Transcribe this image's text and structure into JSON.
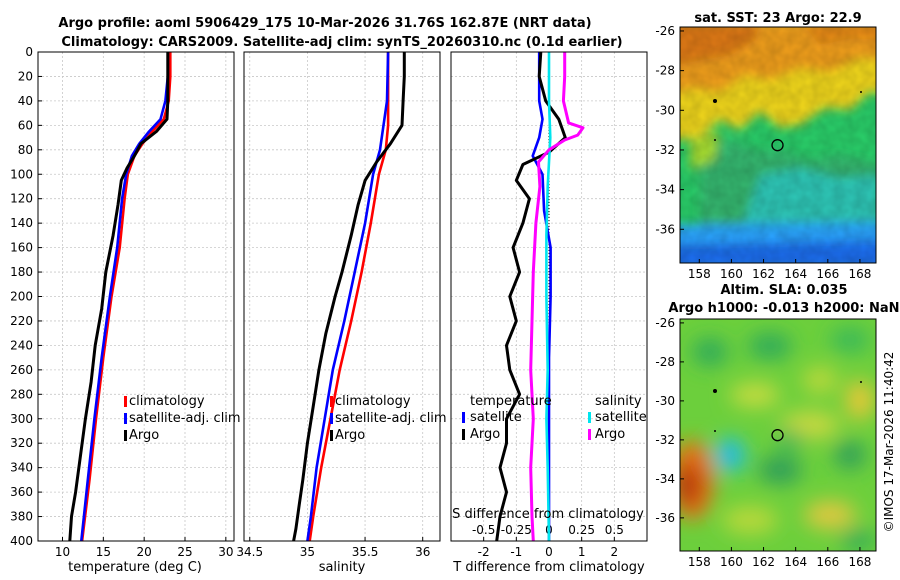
{
  "header": {
    "title_line1": "Argo profile: aoml 5906429_175 10-Mar-2026 31.76S 162.87E (NRT data)",
    "title_line2": "Climatology: CARS2009. Satellite-adj clim: synTS_20260310.nc (0.1d earlier)"
  },
  "colors": {
    "climatology": "#ff0000",
    "satellite": "#0000ff",
    "argo": "#000000",
    "sal_sat": "#00e5ee",
    "sal_argo": "#ff00ff"
  },
  "depth_ticks": [
    "0",
    "20",
    "40",
    "60",
    "80",
    "100",
    "120",
    "140",
    "160",
    "180",
    "200",
    "220",
    "240",
    "260",
    "280",
    "300",
    "320",
    "340",
    "360",
    "380",
    "400"
  ],
  "chart_data": [
    {
      "type": "line",
      "name": "temperature",
      "xlabel": "temperature (deg C)",
      "ylabel": "",
      "xlim": [
        7,
        31
      ],
      "ylim": [
        400,
        0
      ],
      "x_ticks": [
        "10",
        "15",
        "20",
        "25",
        "30"
      ],
      "x_tick_values": [
        10,
        15,
        20,
        25,
        30
      ],
      "legend": [
        "climatology",
        "satellite-adj. clim",
        "Argo"
      ],
      "series": [
        {
          "name": "climatology",
          "color": "#ff0000",
          "points": [
            [
              23.2,
              0
            ],
            [
              23.2,
              20
            ],
            [
              23.0,
              40
            ],
            [
              22.4,
              55
            ],
            [
              21.0,
              65
            ],
            [
              19.8,
              75
            ],
            [
              18.8,
              85
            ],
            [
              18.0,
              100
            ],
            [
              17.6,
              120
            ],
            [
              17.0,
              160
            ],
            [
              16.0,
              200
            ],
            [
              15.0,
              250
            ],
            [
              14.1,
              300
            ],
            [
              13.3,
              350
            ],
            [
              12.4,
              400
            ]
          ]
        },
        {
          "name": "satellite-adj. clim",
          "color": "#0000ff",
          "points": [
            [
              22.9,
              0
            ],
            [
              22.9,
              20
            ],
            [
              22.6,
              40
            ],
            [
              22.0,
              55
            ],
            [
              20.6,
              65
            ],
            [
              19.4,
              75
            ],
            [
              18.5,
              85
            ],
            [
              17.8,
              100
            ],
            [
              17.3,
              120
            ],
            [
              16.7,
              160
            ],
            [
              15.8,
              200
            ],
            [
              14.8,
              250
            ],
            [
              13.9,
              300
            ],
            [
              13.1,
              350
            ],
            [
              12.3,
              400
            ]
          ]
        },
        {
          "name": "Argo",
          "color": "#000000",
          "points": [
            [
              22.9,
              0
            ],
            [
              22.9,
              20
            ],
            [
              22.9,
              40
            ],
            [
              22.8,
              55
            ],
            [
              21.5,
              65
            ],
            [
              19.6,
              75
            ],
            [
              18.8,
              85
            ],
            [
              17.9,
              95
            ],
            [
              17.2,
              105
            ],
            [
              16.8,
              125
            ],
            [
              16.2,
              150
            ],
            [
              15.3,
              180
            ],
            [
              14.8,
              210
            ],
            [
              14.0,
              240
            ],
            [
              13.5,
              270
            ],
            [
              12.8,
              300
            ],
            [
              12.2,
              330
            ],
            [
              11.6,
              360
            ],
            [
              11.1,
              380
            ],
            [
              10.9,
              400
            ]
          ]
        }
      ]
    },
    {
      "type": "line",
      "name": "salinity",
      "xlabel": "salinity",
      "ylabel": "",
      "xlim": [
        34.45,
        36.15
      ],
      "ylim": [
        400,
        0
      ],
      "x_ticks": [
        "34.5",
        "35",
        "35.5",
        "36"
      ],
      "x_tick_values": [
        34.5,
        35,
        35.5,
        36
      ],
      "legend": [
        "climatology",
        "satellite-adj. clim",
        "Argo"
      ],
      "series": [
        {
          "name": "climatology",
          "color": "#ff0000",
          "points": [
            [
              35.7,
              0
            ],
            [
              35.7,
              40
            ],
            [
              35.7,
              60
            ],
            [
              35.68,
              80
            ],
            [
              35.62,
              100
            ],
            [
              35.55,
              140
            ],
            [
              35.47,
              180
            ],
            [
              35.38,
              220
            ],
            [
              35.28,
              260
            ],
            [
              35.2,
              300
            ],
            [
              35.12,
              340
            ],
            [
              35.05,
              380
            ],
            [
              35.02,
              400
            ]
          ]
        },
        {
          "name": "satellite-adj. clim",
          "color": "#0000ff",
          "points": [
            [
              35.7,
              0
            ],
            [
              35.69,
              40
            ],
            [
              35.66,
              60
            ],
            [
              35.63,
              80
            ],
            [
              35.57,
              100
            ],
            [
              35.5,
              140
            ],
            [
              35.41,
              180
            ],
            [
              35.32,
              220
            ],
            [
              35.22,
              260
            ],
            [
              35.15,
              300
            ],
            [
              35.08,
              340
            ],
            [
              35.03,
              380
            ],
            [
              35.0,
              400
            ]
          ]
        },
        {
          "name": "Argo",
          "color": "#000000",
          "points": [
            [
              35.84,
              0
            ],
            [
              35.84,
              20
            ],
            [
              35.83,
              40
            ],
            [
              35.82,
              60
            ],
            [
              35.72,
              75
            ],
            [
              35.6,
              90
            ],
            [
              35.5,
              105
            ],
            [
              35.44,
              125
            ],
            [
              35.38,
              150
            ],
            [
              35.3,
              180
            ],
            [
              35.24,
              200
            ],
            [
              35.16,
              230
            ],
            [
              35.1,
              260
            ],
            [
              35.05,
              290
            ],
            [
              35.0,
              320
            ],
            [
              34.96,
              350
            ],
            [
              34.93,
              370
            ],
            [
              34.9,
              390
            ],
            [
              34.88,
              400
            ]
          ]
        }
      ]
    },
    {
      "type": "line",
      "name": "difference",
      "xlabel": "T difference from climatology",
      "top_label": "S difference from climatology",
      "xlim": [
        -3,
        3
      ],
      "ylim": [
        400,
        0
      ],
      "x_ticks": [
        "-2",
        "-1",
        "0",
        "1",
        "2"
      ],
      "x_tick_values": [
        -2,
        -1,
        0,
        1,
        2
      ],
      "s_ticks": [
        "-0.5",
        "-0.25",
        "0",
        "0.25",
        "0.5"
      ],
      "s_tick_values": [
        -0.5,
        -0.25,
        0,
        0.25,
        0.5
      ],
      "legend_left_header": "temperature",
      "legend_right_header": "salinity",
      "legend_left": [
        "satellite",
        "Argo"
      ],
      "legend_right": [
        "satellite",
        "Argo"
      ],
      "series": [
        {
          "name": "temperature satellite",
          "color": "#0000ff",
          "axis": "T",
          "points": [
            [
              -0.3,
              0
            ],
            [
              -0.3,
              20
            ],
            [
              -0.3,
              40
            ],
            [
              -0.2,
              55
            ],
            [
              -0.3,
              70
            ],
            [
              -0.5,
              85
            ],
            [
              -0.2,
              100
            ],
            [
              -0.15,
              130
            ],
            [
              0.05,
              160
            ],
            [
              0.05,
              200
            ],
            [
              0.0,
              250
            ],
            [
              0.0,
              300
            ],
            [
              0.0,
              400
            ]
          ]
        },
        {
          "name": "temperature Argo",
          "color": "#000000",
          "axis": "T",
          "points": [
            [
              -0.25,
              0
            ],
            [
              -0.3,
              20
            ],
            [
              -0.1,
              40
            ],
            [
              0.3,
              55
            ],
            [
              0.5,
              70
            ],
            [
              0.0,
              82
            ],
            [
              -0.8,
              92
            ],
            [
              -1.0,
              105
            ],
            [
              -0.6,
              120
            ],
            [
              -0.8,
              140
            ],
            [
              -1.1,
              160
            ],
            [
              -0.9,
              180
            ],
            [
              -1.2,
              200
            ],
            [
              -1.0,
              220
            ],
            [
              -1.3,
              240
            ],
            [
              -1.2,
              260
            ],
            [
              -0.9,
              280
            ],
            [
              -1.3,
              300
            ],
            [
              -1.3,
              320
            ],
            [
              -1.5,
              340
            ],
            [
              -1.3,
              360
            ],
            [
              -1.5,
              380
            ],
            [
              -1.6,
              400
            ]
          ]
        },
        {
          "name": "salinity satellite",
          "color": "#00e5ee",
          "axis": "S",
          "points": [
            [
              0.0,
              0
            ],
            [
              0.0,
              40
            ],
            [
              0.01,
              70
            ],
            [
              0.0,
              90
            ],
            [
              -0.01,
              110
            ],
            [
              -0.02,
              150
            ],
            [
              -0.02,
              200
            ],
            [
              -0.01,
              260
            ],
            [
              -0.02,
              300
            ],
            [
              -0.01,
              340
            ],
            [
              0.0,
              400
            ]
          ]
        },
        {
          "name": "salinity Argo",
          "color": "#ff00ff",
          "axis": "S",
          "points": [
            [
              0.12,
              0
            ],
            [
              0.12,
              20
            ],
            [
              0.11,
              40
            ],
            [
              0.15,
              58
            ],
            [
              0.26,
              62
            ],
            [
              0.22,
              68
            ],
            [
              0.12,
              72
            ],
            [
              0.0,
              80
            ],
            [
              -0.08,
              90
            ],
            [
              -0.07,
              110
            ],
            [
              -0.1,
              140
            ],
            [
              -0.12,
              180
            ],
            [
              -0.13,
              220
            ],
            [
              -0.14,
              260
            ],
            [
              -0.12,
              300
            ],
            [
              -0.14,
              340
            ],
            [
              -0.13,
              380
            ],
            [
              -0.12,
              400
            ]
          ]
        }
      ]
    },
    {
      "type": "heatmap",
      "name": "sst_map",
      "title": "sat. SST: 23 Argo: 22.9",
      "x_ticks": [
        "158",
        "160",
        "162",
        "164",
        "166",
        "168"
      ],
      "x_tick_values": [
        158,
        160,
        162,
        164,
        166,
        168
      ],
      "y_ticks": [
        "-26",
        "-28",
        "-30",
        "-32",
        "-34",
        "-36"
      ],
      "y_tick_values": [
        -26,
        -28,
        -30,
        -32,
        -34,
        -36
      ],
      "xlim": [
        156.8,
        169
      ],
      "ylim": [
        -37.7,
        -25.8
      ],
      "profile_location": [
        162.87,
        -31.76
      ]
    },
    {
      "type": "heatmap",
      "name": "sla_map",
      "title_line1": "Altim. SLA: 0.035",
      "title_line2": "Argo h1000: -0.013 h2000: NaN",
      "x_ticks": [
        "158",
        "160",
        "162",
        "164",
        "166",
        "168"
      ],
      "x_tick_values": [
        158,
        160,
        162,
        164,
        166,
        168
      ],
      "y_ticks": [
        "-26",
        "-28",
        "-30",
        "-32",
        "-34",
        "-36"
      ],
      "y_tick_values": [
        -26,
        -28,
        -30,
        -32,
        -34,
        -36
      ],
      "xlim": [
        156.8,
        169
      ],
      "ylim": [
        -37.7,
        -25.8
      ],
      "profile_location": [
        162.87,
        -31.76
      ]
    }
  ],
  "footer": {
    "credit": "©IMOS 17-Mar-2026 11:40:42"
  }
}
